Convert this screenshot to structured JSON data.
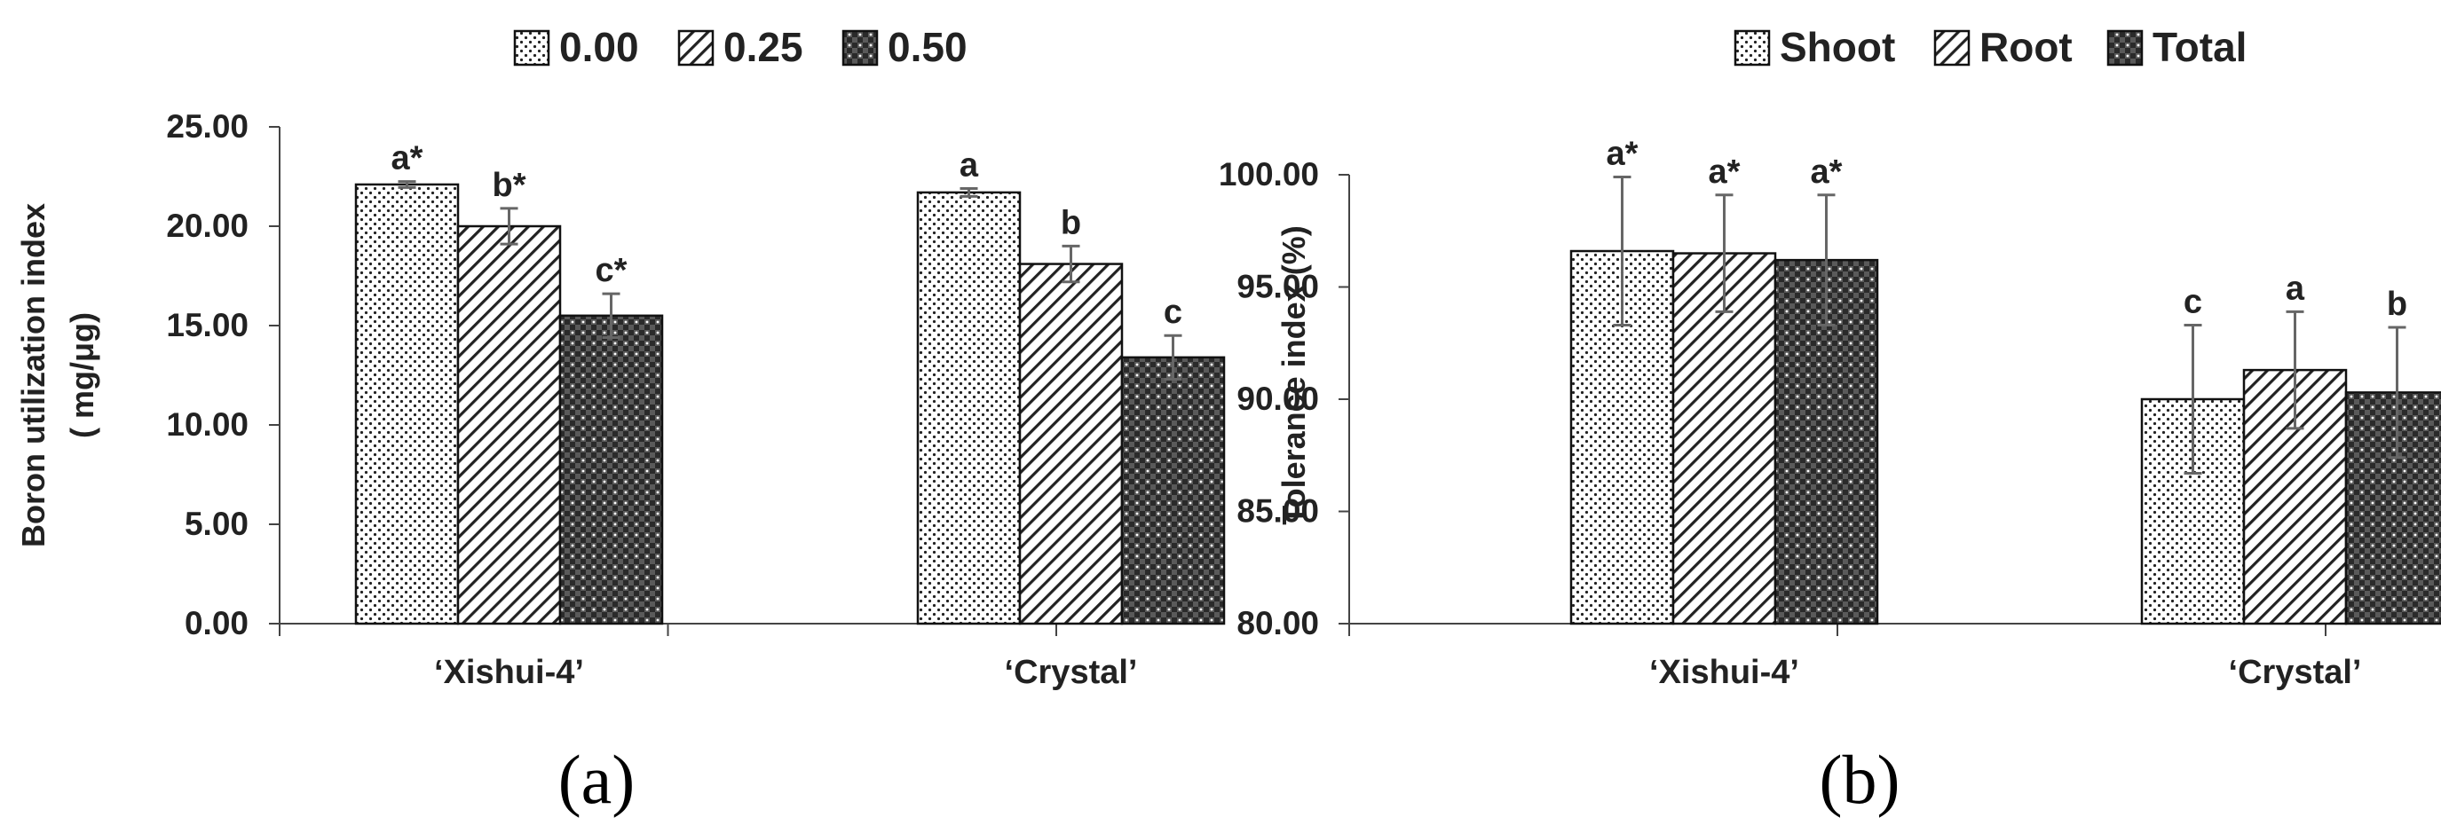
{
  "chart_data": [
    {
      "type": "bar",
      "panel_label": "(a)",
      "ylabel_lines": [
        "Boron utilization index",
        "( mg/μg)"
      ],
      "ylim": [
        0,
        25
      ],
      "yticks": [
        "0.00",
        "5.00",
        "10.00",
        "15.00",
        "20.00",
        "25.00"
      ],
      "categories": [
        "‘Xishui-4’",
        "‘Crystal’"
      ],
      "legend_position": "top",
      "series": [
        {
          "name": "0.00",
          "pattern": "dots",
          "values": [
            22.1,
            21.7
          ],
          "errors": [
            0.15,
            0.2
          ],
          "labels": [
            "a*",
            "a"
          ]
        },
        {
          "name": "0.25",
          "pattern": "hatch",
          "values": [
            20.0,
            18.1
          ],
          "errors": [
            0.9,
            0.9
          ],
          "labels": [
            "b*",
            "b"
          ]
        },
        {
          "name": "0.50",
          "pattern": "checker",
          "values": [
            15.5,
            13.4
          ],
          "errors": [
            1.1,
            1.1
          ],
          "labels": [
            "c*",
            "c"
          ]
        }
      ]
    },
    {
      "type": "bar",
      "panel_label": "(b)",
      "ylabel_lines": [
        "Tolerance index (%)"
      ],
      "ylim": [
        80,
        100
      ],
      "yticks": [
        "80.00",
        "85.00",
        "90.00",
        "95.00",
        "100.00"
      ],
      "categories": [
        "‘Xishui-4’",
        "‘Crystal’"
      ],
      "legend_position": "top",
      "series": [
        {
          "name": "Shoot",
          "pattern": "dots",
          "values": [
            96.6,
            90.0
          ],
          "errors": [
            3.3,
            3.3
          ],
          "labels": [
            "a*",
            "c"
          ]
        },
        {
          "name": "Root",
          "pattern": "hatch",
          "values": [
            96.5,
            91.3
          ],
          "errors": [
            2.6,
            2.6
          ],
          "labels": [
            "a*",
            "a"
          ]
        },
        {
          "name": "Total",
          "pattern": "checker",
          "values": [
            96.2,
            90.3
          ],
          "errors": [
            2.9,
            2.9
          ],
          "labels": [
            "a*",
            "b"
          ]
        }
      ]
    }
  ]
}
